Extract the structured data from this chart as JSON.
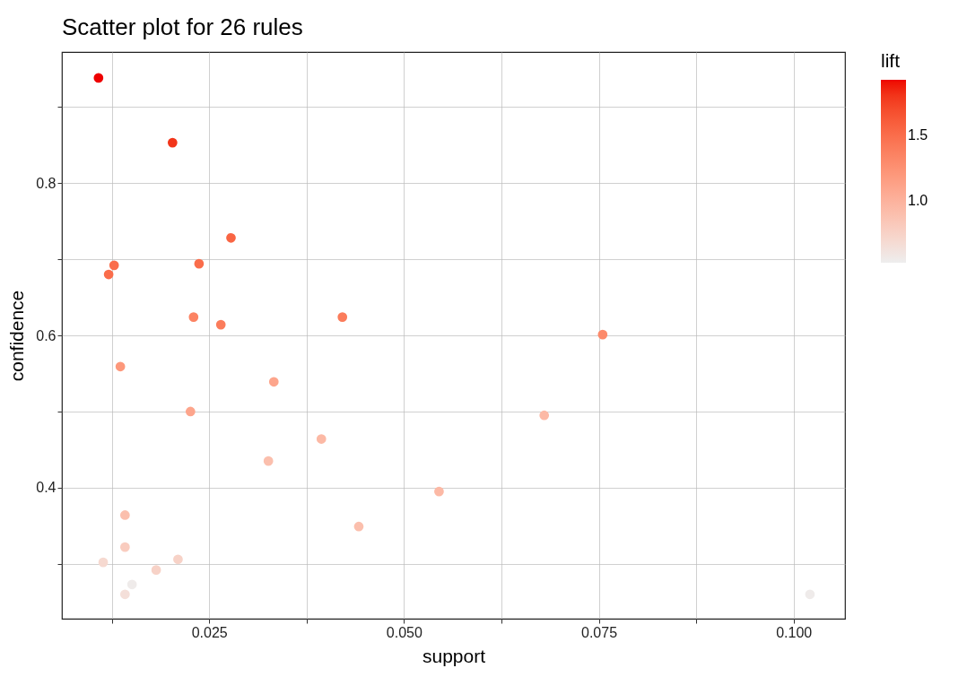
{
  "chart_data": {
    "type": "scatter",
    "title": "Scatter plot for 26 rules",
    "xlabel": "support",
    "ylabel": "confidence",
    "clabel": "lift",
    "x": [
      0.0108,
      0.0203,
      0.0278,
      0.0237,
      0.0128,
      0.0121,
      0.023,
      0.0265,
      0.0421,
      0.0755,
      0.0136,
      0.0333,
      0.0226,
      0.068,
      0.0394,
      0.0326,
      0.0545,
      0.0142,
      0.0442,
      0.0142,
      0.0114,
      0.021,
      0.0182,
      0.0151,
      0.0142,
      0.1021
    ],
    "values": [
      0.938,
      0.853,
      0.728,
      0.694,
      0.692,
      0.68,
      0.624,
      0.614,
      0.624,
      0.601,
      0.559,
      0.539,
      0.5,
      0.495,
      0.464,
      0.435,
      0.395,
      0.364,
      0.349,
      0.322,
      0.302,
      0.306,
      0.292,
      0.273,
      0.26,
      0.26
    ],
    "cvalues": [
      1.92,
      1.8,
      1.55,
      1.5,
      1.5,
      1.5,
      1.35,
      1.4,
      1.4,
      1.3,
      1.2,
      1.1,
      1.1,
      0.95,
      0.95,
      0.9,
      0.95,
      0.9,
      0.9,
      0.8,
      0.7,
      0.75,
      0.75,
      0.55,
      0.65,
      0.55
    ],
    "xlim": [
      0.0061,
      0.1066
    ],
    "ylim": [
      0.228,
      0.972
    ],
    "clim": [
      0.53,
      1.92
    ],
    "xticks": [
      {
        "value": 0.0125,
        "label": null
      },
      0.025,
      {
        "value": 0.0375,
        "label": null
      },
      {
        "value": 0.05,
        "label": "0.050"
      },
      {
        "value": 0.0625,
        "label": null
      },
      0.075,
      {
        "value": 0.0875,
        "label": null
      },
      {
        "value": 0.1,
        "label": "0.100"
      }
    ],
    "yticks": [
      {
        "value": 0.3,
        "label": null
      },
      0.4,
      {
        "value": 0.5,
        "label": null
      },
      0.6,
      {
        "value": 0.7,
        "label": null
      },
      0.8,
      {
        "value": 0.9,
        "label": null
      }
    ],
    "cticks": [
      {
        "value": 1,
        "label": "1.0"
      },
      1.5
    ],
    "grid": true,
    "marker": "circle"
  }
}
